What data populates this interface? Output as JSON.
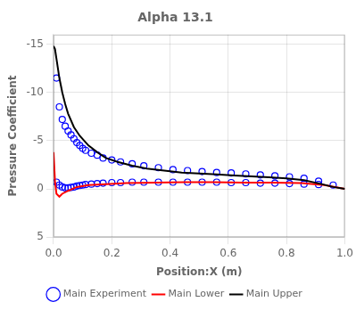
{
  "chart_data": {
    "type": "line",
    "title": "Alpha 13.1",
    "xlabel": "Position:X (m)",
    "ylabel": "Pressure Coefficient",
    "xlim": [
      0,
      1.0
    ],
    "ylim": [
      5,
      -16
    ],
    "xticks": [
      {
        "value": 0,
        "label": "0.0"
      },
      0.2,
      0.4,
      0.6,
      0.8,
      {
        "value": 1.0,
        "label": "1.0"
      }
    ],
    "yticks": [
      -15,
      -10,
      -5,
      0,
      5
    ],
    "grid": true,
    "legend": "bottom",
    "series": [
      {
        "name": "Main Upper",
        "color": "#000000",
        "line_style": "solid",
        "x": [
          0.0,
          0.005,
          0.01,
          0.015,
          0.02,
          0.03,
          0.04,
          0.05,
          0.07,
          0.09,
          0.12,
          0.15,
          0.18,
          0.22,
          0.27,
          0.32,
          0.38,
          0.44,
          0.5,
          0.56,
          0.62,
          0.68,
          0.74,
          0.8,
          0.86,
          0.92,
          0.96,
          1.0
        ],
        "values": [
          -14.8,
          -14.5,
          -13.5,
          -12.5,
          -11.5,
          -10.0,
          -8.8,
          -7.8,
          -6.4,
          -5.5,
          -4.5,
          -3.8,
          -3.2,
          -2.8,
          -2.4,
          -2.1,
          -1.9,
          -1.7,
          -1.6,
          -1.5,
          -1.4,
          -1.3,
          -1.2,
          -1.1,
          -0.9,
          -0.5,
          -0.2,
          0.0
        ]
      },
      {
        "name": "Main Lower",
        "color": "#ff0000",
        "line_style": "solid",
        "x": [
          0.0,
          0.005,
          0.01,
          0.02,
          0.03,
          0.05,
          0.08,
          0.12,
          0.18,
          0.25,
          0.35,
          0.45,
          0.55,
          0.65,
          0.75,
          0.85,
          0.93,
          1.0
        ],
        "values": [
          -3.8,
          -0.8,
          0.5,
          0.8,
          0.5,
          0.2,
          -0.2,
          -0.4,
          -0.5,
          -0.6,
          -0.65,
          -0.7,
          -0.7,
          -0.65,
          -0.65,
          -0.6,
          -0.4,
          0.0
        ]
      },
      {
        "name": "Main Experiment",
        "color": "#0000ff",
        "marker": "circle",
        "line_style": "none",
        "x": [
          0.01,
          0.02,
          0.03,
          0.04,
          0.05,
          0.06,
          0.07,
          0.08,
          0.09,
          0.1,
          0.11,
          0.13,
          0.15,
          0.17,
          0.2,
          0.23,
          0.27,
          0.31,
          0.36,
          0.41,
          0.46,
          0.51,
          0.56,
          0.61,
          0.66,
          0.71,
          0.76,
          0.81,
          0.86,
          0.91,
          0.96,
          0.01,
          0.02,
          0.03,
          0.04,
          0.05,
          0.06,
          0.07,
          0.08,
          0.09,
          0.1,
          0.11,
          0.13,
          0.15,
          0.17,
          0.2,
          0.23,
          0.27,
          0.31,
          0.36,
          0.41,
          0.46,
          0.51,
          0.56,
          0.61,
          0.66,
          0.71,
          0.76,
          0.81,
          0.86,
          0.91
        ],
        "values": [
          -11.5,
          -8.5,
          -7.2,
          -6.5,
          -6.0,
          -5.6,
          -5.2,
          -4.8,
          -4.5,
          -4.2,
          -4.0,
          -3.7,
          -3.5,
          -3.2,
          -3.0,
          -2.8,
          -2.6,
          -2.4,
          -2.2,
          -2.0,
          -1.9,
          -1.8,
          -1.7,
          -1.65,
          -1.55,
          -1.45,
          -1.35,
          -1.25,
          -1.1,
          -0.8,
          -0.4,
          -0.7,
          -0.4,
          -0.2,
          -0.1,
          -0.1,
          -0.15,
          -0.2,
          -0.3,
          -0.35,
          -0.4,
          -0.45,
          -0.5,
          -0.55,
          -0.6,
          -0.65,
          -0.65,
          -0.7,
          -0.7,
          -0.7,
          -0.7,
          -0.7,
          -0.7,
          -0.7,
          -0.65,
          -0.65,
          -0.6,
          -0.6,
          -0.55,
          -0.5,
          -0.45
        ]
      }
    ]
  }
}
